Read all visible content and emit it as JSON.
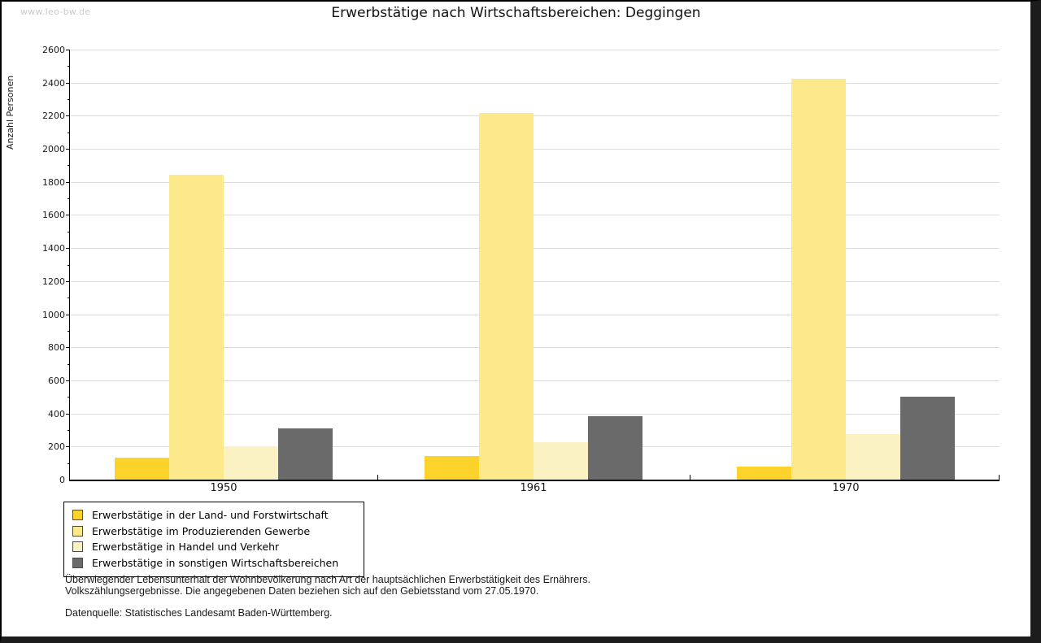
{
  "watermark": "www.leo-bw.de",
  "title": "Erwerbstätige nach Wirtschaftsbereichen: Deggingen",
  "chart_data": {
    "type": "bar",
    "title": "Erwerbstätige nach Wirtschaftsbereichen: Deggingen",
    "xlabel": "",
    "ylabel": "Anzahl Personen",
    "categories": [
      "1950",
      "1961",
      "1970"
    ],
    "series": [
      {
        "name": "Erwerbstätige in der Land- und Forstwirtschaft",
        "color": "#FBD32B",
        "values": [
          135,
          145,
          80
        ]
      },
      {
        "name": "Erwerbstätige im Produzierenden Gewerbe",
        "color": "#FCE98B",
        "values": [
          1845,
          2215,
          2425
        ]
      },
      {
        "name": "Erwerbstätige in Handel und Verkehr",
        "color": "#FAF2C3",
        "values": [
          200,
          225,
          275
        ]
      },
      {
        "name": "Erwerbstätige in sonstigen Wirtschaftsbereichen",
        "color": "#6A6A6A",
        "values": [
          310,
          385,
          500
        ]
      }
    ],
    "ylim": [
      0,
      2600
    ],
    "ytick_step": 200,
    "ytick_minor_step": 100,
    "grid": true,
    "legend_position": "bottom-left",
    "colors": {
      "gridline": "#DCDCDC",
      "axis": "#000000",
      "text": "#1A1A1A",
      "watermark": "#CBCBCB"
    }
  },
  "footnotes": {
    "line1": "Überwiegender Lebensunterhalt der Wohnbevölkerung nach Art der hauptsächlichen Erwerbstätigkeit des Ernährers.",
    "line2": "Volkszählungsergebnisse. Die angegebenen Daten beziehen sich auf den Gebietsstand vom 27.05.1970.",
    "source": "Datenquelle: Statistisches Landesamt Baden-Württemberg."
  }
}
